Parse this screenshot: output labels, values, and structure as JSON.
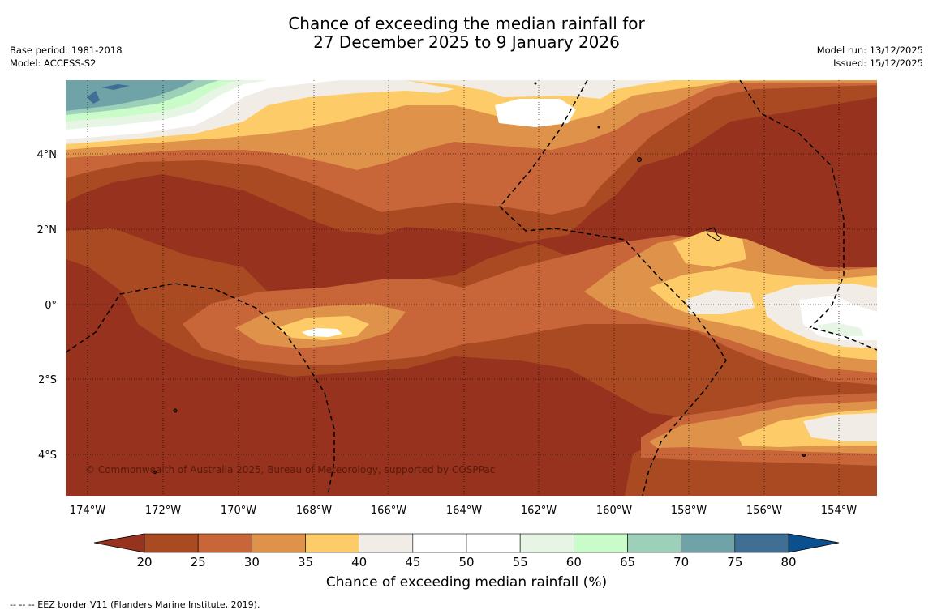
{
  "title": {
    "line1": "Chance of exceeding the median rainfall for",
    "line2": "27 December 2025 to 9 January 2026"
  },
  "meta_left": {
    "base_period": "Base period: 1981-2018",
    "model": "Model: ACCESS-S2"
  },
  "meta_right": {
    "model_run": "Model run: 13/12/2025",
    "issued": "Issued: 15/12/2025"
  },
  "map": {
    "copyright": "© Commonwealth of Australia 2025, Bureau of Meteorology, supported by COSPPac",
    "lon_range": [
      -174.6,
      -153.0
    ],
    "lat_range": [
      -5.0,
      6.0
    ],
    "lon_ticks": [
      {
        "value": -174,
        "label": "174°W"
      },
      {
        "value": -172,
        "label": "172°W"
      },
      {
        "value": -170,
        "label": "170°W"
      },
      {
        "value": -168,
        "label": "168°W"
      },
      {
        "value": -166,
        "label": "166°W"
      },
      {
        "value": -164,
        "label": "164°W"
      },
      {
        "value": -162,
        "label": "162°W"
      },
      {
        "value": -160,
        "label": "160°W"
      },
      {
        "value": -158,
        "label": "158°W"
      },
      {
        "value": -156,
        "label": "156°W"
      },
      {
        "value": -154,
        "label": "154°W"
      }
    ],
    "lat_ticks": [
      {
        "value": 4,
        "label": "4°N"
      },
      {
        "value": 2,
        "label": "2°N"
      },
      {
        "value": 0,
        "label": "0°"
      },
      {
        "value": -2,
        "label": "2°S"
      },
      {
        "value": -4,
        "label": "4°S"
      }
    ],
    "colors": {
      "20-25": "#a94a22",
      "25-30": "#c8663a",
      "30-35": "#df9249",
      "35-40": "#fdcc68",
      "40-45": "#f1ece6",
      "45-55": "#ffffff",
      "55-60": "#e6f5e4",
      "60-65": "#c9fcc9",
      "65-70": "#9dd0b8",
      "70-75": "#6fa3a7",
      "75-80": "#3f6f94",
      "under20": "#96321d",
      "over80": "#0a4f8e"
    }
  },
  "colorbar": {
    "title": "Chance of exceeding median rainfall (%)",
    "ticks": [
      "20",
      "25",
      "30",
      "35",
      "40",
      "45",
      "50",
      "55",
      "60",
      "65",
      "70",
      "75",
      "80"
    ],
    "colors": [
      "#a94a22",
      "#c8663a",
      "#df9249",
      "#fdcc68",
      "#f1ece6",
      "#ffffff",
      "#ffffff",
      "#e6f5e4",
      "#c9fcc9",
      "#9dd0b8",
      "#6fa3a7",
      "#3f6f94"
    ],
    "under_color": "#96321d",
    "over_color": "#0a4f8e"
  },
  "footnote": "--  --  -- EEZ border V11 (Flanders Marine Institute, 2019)."
}
